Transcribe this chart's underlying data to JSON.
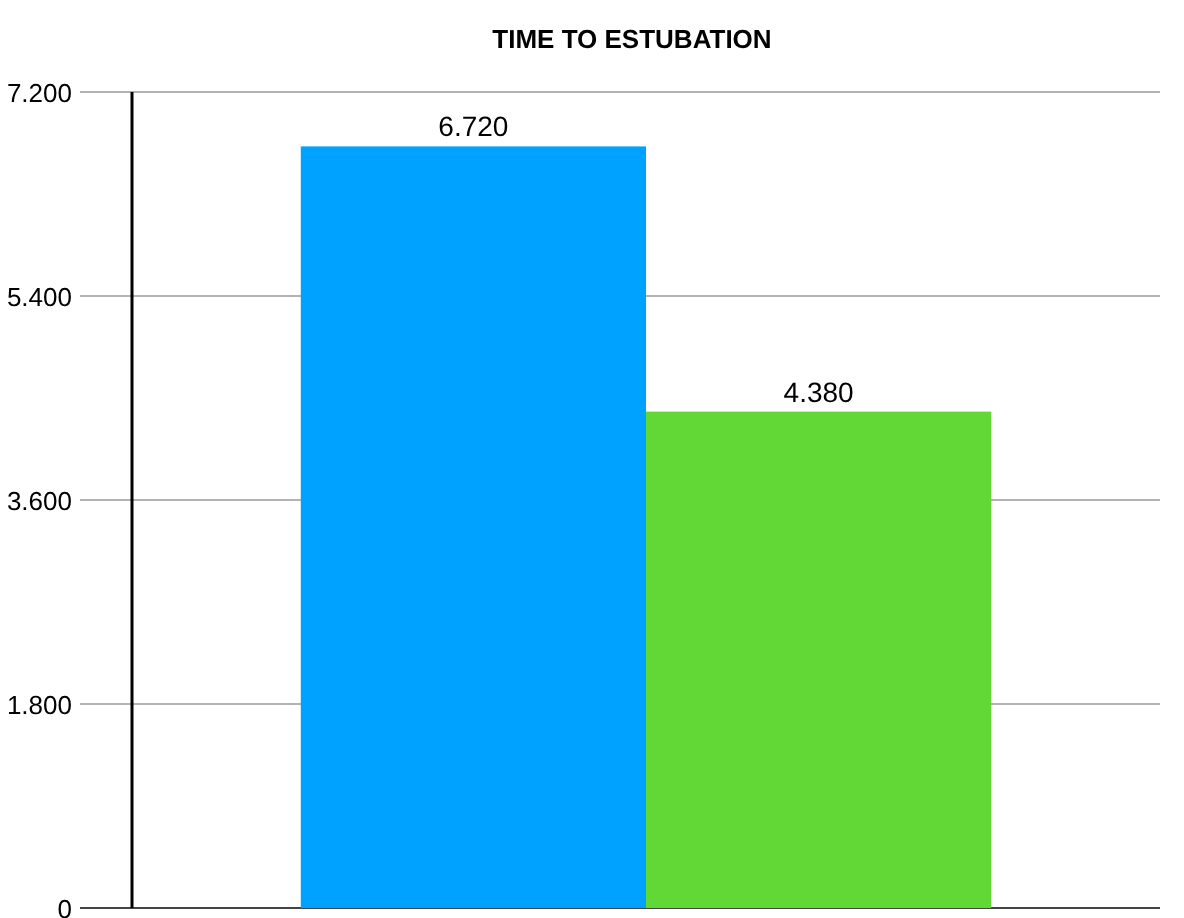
{
  "chart_data": {
    "type": "bar",
    "title": "TIME TO ESTUBATION",
    "categories": [
      null
    ],
    "series": [
      {
        "color": "#00a2ff",
        "values": [
          6.72
        ],
        "value_labels": [
          "6.720"
        ]
      },
      {
        "color": "#61d836",
        "values": [
          4.38
        ],
        "value_labels": [
          "4.380"
        ]
      }
    ],
    "ylim": [
      0,
      7.2
    ],
    "yticks": [
      {
        "value": 0,
        "label": "0"
      },
      {
        "value": 1.8,
        "label": "1.800"
      },
      {
        "value": 3.6,
        "label": "3.600"
      },
      {
        "value": 5.4,
        "label": "5.400"
      },
      {
        "value": 7.2,
        "label": "7.200"
      }
    ],
    "grid": "y"
  }
}
